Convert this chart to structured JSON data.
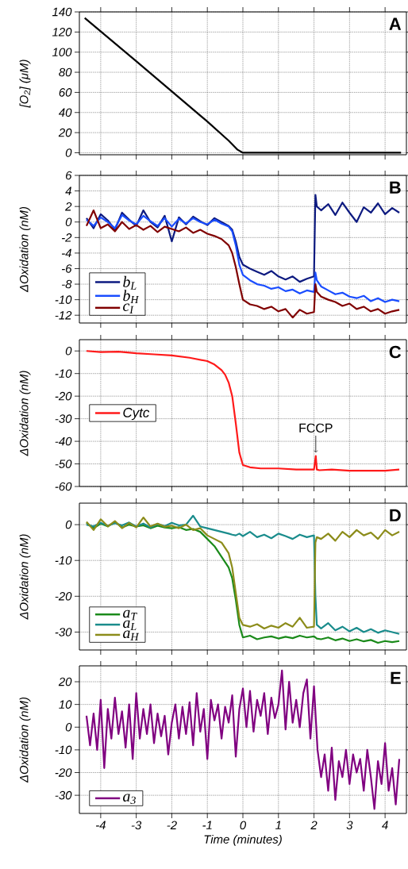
{
  "chart_data": [
    {
      "type": "line",
      "title": "A",
      "ylabel": "[O$_{2}$] (μM)",
      "x": [
        -4.45,
        -3,
        -1,
        -0.4,
        -0.15,
        0,
        4.45
      ],
      "xlim": [
        -4.6,
        4.6
      ],
      "xticks": [
        -4,
        -3,
        -2,
        -1,
        0,
        1,
        2,
        3,
        4
      ],
      "ylim": [
        -2,
        140
      ],
      "yticks": [
        0,
        20,
        40,
        60,
        80,
        100,
        120,
        140
      ],
      "grid": true,
      "tick_labels": "y",
      "series": [
        {
          "color": "#000000",
          "values": [
            134,
            91,
            31,
            12,
            3,
            0,
            0
          ]
        }
      ]
    },
    {
      "type": "line",
      "title": "B",
      "ylabel": "ΔOxidation (nM)",
      "x": [
        -4.4,
        -4.2,
        -4.0,
        -3.8,
        -3.6,
        -3.4,
        -3.2,
        -3.0,
        -2.8,
        -2.6,
        -2.4,
        -2.2,
        -2.0,
        -1.8,
        -1.6,
        -1.4,
        -1.2,
        -1.0,
        -0.8,
        -0.6,
        -0.4,
        -0.3,
        -0.2,
        -0.1,
        0,
        0.2,
        0.4,
        0.6,
        0.8,
        1.0,
        1.2,
        1.4,
        1.6,
        1.8,
        2.0,
        2.04,
        2.08,
        2.2,
        2.4,
        2.6,
        2.8,
        3.0,
        3.2,
        3.4,
        3.6,
        3.8,
        4.0,
        4.2,
        4.4
      ],
      "xlim": [
        -4.6,
        4.6
      ],
      "xticks": [
        -4,
        -3,
        -2,
        -1,
        0,
        1,
        2,
        3,
        4
      ],
      "ylim": [
        -13,
        6
      ],
      "yticks": [
        -12,
        -10,
        -8,
        -6,
        -4,
        -2,
        0,
        2,
        4,
        6
      ],
      "grid": true,
      "tick_labels": "y",
      "legend": "bottom left",
      "series": [
        {
          "name": "b$_{L}$",
          "color": "#0d1a80",
          "values": [
            0.5,
            -0.8,
            1,
            0.2,
            -1,
            1.2,
            0.3,
            -0.5,
            1.5,
            0,
            -0.7,
            0.8,
            -2.5,
            0.6,
            -0.3,
            0.7,
            0.1,
            -0.4,
            0.5,
            0,
            -0.5,
            -1,
            -2.5,
            -4.5,
            -5.5,
            -6,
            -6.4,
            -6.8,
            -6.3,
            -7,
            -7.4,
            -7,
            -7.7,
            -7.3,
            -7,
            3.5,
            2,
            1.5,
            2.3,
            0.9,
            2.5,
            1.2,
            0,
            1.9,
            1.2,
            2.4,
            1,
            1.8,
            1.2
          ]
        },
        {
          "name": "b$_{H}$",
          "color": "#1a4dff",
          "values": [
            0.3,
            -0.5,
            0.6,
            0,
            -0.8,
            0.9,
            0.2,
            -0.3,
            0.8,
            0.1,
            -0.5,
            0.5,
            -0.6,
            0.4,
            -0.2,
            0.5,
            0,
            -0.3,
            0.3,
            -0.2,
            -0.6,
            -1.2,
            -3,
            -5.5,
            -6.8,
            -7.5,
            -8,
            -8.2,
            -8.6,
            -8.4,
            -8.9,
            -8.7,
            -9.2,
            -8.8,
            -9,
            -6.5,
            -7.5,
            -8.3,
            -8.8,
            -9.3,
            -9.1,
            -9.6,
            -9.8,
            -9.5,
            -10.2,
            -9.8,
            -10.3,
            -10,
            -10.2
          ]
        },
        {
          "name": "c$_{I}$",
          "color": "#800000",
          "values": [
            -0.5,
            1.5,
            -0.8,
            -0.3,
            -1.2,
            0,
            -0.9,
            -0.4,
            -1,
            -0.5,
            -1.3,
            -0.6,
            -0.9,
            -1.2,
            -0.7,
            -1.4,
            -1,
            -1.5,
            -1.8,
            -2.2,
            -3,
            -4,
            -5.8,
            -8,
            -10,
            -10.6,
            -10.8,
            -11.2,
            -10.9,
            -11.5,
            -11.2,
            -12.3,
            -11.3,
            -11.8,
            -11.6,
            -8,
            -9,
            -9.6,
            -10,
            -10.3,
            -10.8,
            -10.5,
            -11.2,
            -10.9,
            -11.5,
            -11.2,
            -11.8,
            -11.5,
            -11.3
          ]
        }
      ]
    },
    {
      "type": "line",
      "title": "C",
      "ylabel": "ΔOxidation (nM)",
      "x": [
        -4.4,
        -4,
        -3.5,
        -3,
        -2.5,
        -2,
        -1.5,
        -1,
        -0.8,
        -0.6,
        -0.5,
        -0.4,
        -0.3,
        -0.2,
        -0.1,
        0,
        0.2,
        0.5,
        1,
        1.5,
        2,
        2.05,
        2.08,
        2.15,
        2.5,
        3,
        3.5,
        4,
        4.4
      ],
      "xlim": [
        -4.6,
        4.6
      ],
      "xticks": [
        -4,
        -3,
        -2,
        -1,
        0,
        1,
        2,
        3,
        4
      ],
      "ylim": [
        -60,
        5
      ],
      "yticks": [
        -60,
        -50,
        -40,
        -30,
        -20,
        -10,
        0
      ],
      "grid": true,
      "tick_labels": "y",
      "legend": "left",
      "annotations": [
        {
          "text": "FCCP",
          "x": 2.05,
          "y": -46.5
        }
      ],
      "series": [
        {
          "name": "Cytc",
          "color": "#ff1a1a",
          "values": [
            0,
            -0.5,
            -0.3,
            -1,
            -1.5,
            -2,
            -3,
            -4.5,
            -6,
            -8.5,
            -10.5,
            -14,
            -20,
            -32,
            -45,
            -50.5,
            -51.5,
            -52,
            -52,
            -52.5,
            -52.5,
            -46.5,
            -52.5,
            -52.8,
            -52.5,
            -53,
            -53,
            -53,
            -52.5
          ]
        }
      ]
    },
    {
      "type": "line",
      "title": "D",
      "ylabel": "ΔOxidation (nM)",
      "x": [
        -4.4,
        -4.2,
        -4.0,
        -3.8,
        -3.6,
        -3.4,
        -3.2,
        -3.0,
        -2.8,
        -2.6,
        -2.4,
        -2.2,
        -2.0,
        -1.8,
        -1.6,
        -1.4,
        -1.2,
        -1.0,
        -0.8,
        -0.6,
        -0.4,
        -0.3,
        -0.2,
        -0.1,
        0,
        0.2,
        0.4,
        0.6,
        0.8,
        1.0,
        1.2,
        1.4,
        1.6,
        1.8,
        2.0,
        2.04,
        2.08,
        2.2,
        2.4,
        2.6,
        2.8,
        3.0,
        3.2,
        3.4,
        3.6,
        3.8,
        4.0,
        4.2,
        4.4
      ],
      "xlim": [
        -4.6,
        4.6
      ],
      "xticks": [
        -4,
        -3,
        -2,
        -1,
        0,
        1,
        2,
        3,
        4
      ],
      "ylim": [
        -35,
        6
      ],
      "yticks": [
        -30,
        -20,
        -10,
        0
      ],
      "grid": true,
      "tick_labels": "y",
      "legend": "bottom left",
      "series": [
        {
          "name": "a$_{T}$",
          "color": "#1a8a1a",
          "values": [
            0.5,
            -1,
            0.3,
            -0.5,
            0.8,
            -0.8,
            0,
            -0.5,
            -0.2,
            -1,
            -0.3,
            -0.8,
            -1,
            -0.7,
            -1.5,
            -1.2,
            -2,
            -4,
            -6,
            -9,
            -12,
            -15,
            -21,
            -28,
            -31.5,
            -31,
            -32,
            -31.5,
            -31.2,
            -31.8,
            -31.3,
            -31.7,
            -31,
            -31.5,
            -31.2,
            -31.5,
            -31.8,
            -32,
            -31.5,
            -32.3,
            -31.8,
            -32.5,
            -32,
            -32.6,
            -32.2,
            -33,
            -32.5,
            -32.8,
            -32.5
          ]
        },
        {
          "name": "a$_{L}$",
          "color": "#1a8c8c",
          "values": [
            0,
            -0.5,
            0.5,
            -0.3,
            0.4,
            -0.2,
            0.6,
            -0.5,
            0.3,
            -0.8,
            0.2,
            -0.4,
            0.5,
            -0.2,
            0,
            2.5,
            -0.5,
            -1,
            -1.5,
            -2,
            -2.5,
            -2.8,
            -3,
            -2.5,
            -3.2,
            -2,
            -3.5,
            -2.8,
            -3.8,
            -2.5,
            -3.2,
            -4,
            -2.8,
            -3.5,
            -3,
            -20,
            -28,
            -29,
            -27.5,
            -29.5,
            -28.5,
            -29.8,
            -28.8,
            -30,
            -29.2,
            -30.2,
            -29.5,
            -30,
            -30.5
          ]
        },
        {
          "name": "a$_{H}$",
          "color": "#8c8c1a",
          "values": [
            0.8,
            -1.5,
            1.5,
            -0.5,
            1,
            -1,
            0.5,
            -0.8,
            2,
            -0.5,
            0.3,
            -0.6,
            -0.3,
            -1,
            0,
            -1.5,
            -1,
            -3,
            -4,
            -5,
            -8,
            -12,
            -19,
            -26,
            -28,
            -28.5,
            -27.8,
            -29,
            -28.2,
            -28.8,
            -27.5,
            -28.5,
            -26,
            -28.8,
            -28.5,
            -5,
            -3.5,
            -4,
            -2.5,
            -4.5,
            -2,
            -3.5,
            -1.5,
            -3,
            -2.2,
            -4,
            -1.5,
            -3,
            -2
          ]
        }
      ]
    },
    {
      "type": "line",
      "title": "E",
      "ylabel": "ΔOxidation (nM)",
      "xlabel": "Time (minutes)",
      "x": [
        -4.4,
        -4.3,
        -4.2,
        -4.1,
        -4.0,
        -3.9,
        -3.8,
        -3.7,
        -3.6,
        -3.5,
        -3.4,
        -3.3,
        -3.2,
        -3.1,
        -3.0,
        -2.9,
        -2.8,
        -2.7,
        -2.6,
        -2.5,
        -2.4,
        -2.3,
        -2.2,
        -2.1,
        -2.0,
        -1.9,
        -1.8,
        -1.7,
        -1.6,
        -1.5,
        -1.4,
        -1.3,
        -1.2,
        -1.1,
        -1.0,
        -0.9,
        -0.8,
        -0.7,
        -0.6,
        -0.5,
        -0.4,
        -0.3,
        -0.2,
        -0.1,
        0,
        0.1,
        0.2,
        0.3,
        0.4,
        0.5,
        0.6,
        0.7,
        0.8,
        0.9,
        1.0,
        1.1,
        1.2,
        1.3,
        1.4,
        1.5,
        1.6,
        1.7,
        1.8,
        1.9,
        2.0,
        2.1,
        2.2,
        2.3,
        2.4,
        2.5,
        2.6,
        2.7,
        2.8,
        2.9,
        3.0,
        3.1,
        3.2,
        3.3,
        3.4,
        3.5,
        3.6,
        3.7,
        3.8,
        3.9,
        4.0,
        4.1,
        4.2,
        4.3,
        4.4
      ],
      "xlim": [
        -4.6,
        4.6
      ],
      "xticks": [
        -4,
        -3,
        -2,
        -1,
        0,
        1,
        2,
        3,
        4
      ],
      "ylim": [
        -38,
        27
      ],
      "yticks": [
        -30,
        -20,
        -10,
        0,
        10,
        20
      ],
      "grid": true,
      "legend": "bottom left",
      "series": [
        {
          "name": "a$_{3}$",
          "color": "#800080",
          "values": [
            5,
            -8,
            6,
            -10,
            12,
            -18,
            8,
            -5,
            13,
            -3,
            7,
            -9,
            10,
            -14,
            15,
            -5,
            8,
            -3,
            10,
            -7,
            6,
            -4,
            5,
            -12,
            2,
            10,
            -5,
            9,
            -3,
            11,
            -8,
            15,
            -2,
            8,
            -14,
            12,
            3,
            10,
            -5,
            9,
            2,
            14,
            -13,
            8,
            17,
            0,
            16,
            -2,
            12,
            5,
            15,
            -3,
            13,
            4,
            10,
            25,
            -1,
            20,
            2,
            12,
            0,
            15,
            21,
            -5,
            18,
            -10,
            -22,
            -12,
            -28,
            -9,
            -32,
            -15,
            -22,
            -10,
            -25,
            -12,
            -20,
            -14,
            -28,
            -10,
            -22,
            -36,
            -15,
            -25,
            -7,
            -28,
            -18,
            -34,
            -14
          ]
        }
      ]
    }
  ]
}
